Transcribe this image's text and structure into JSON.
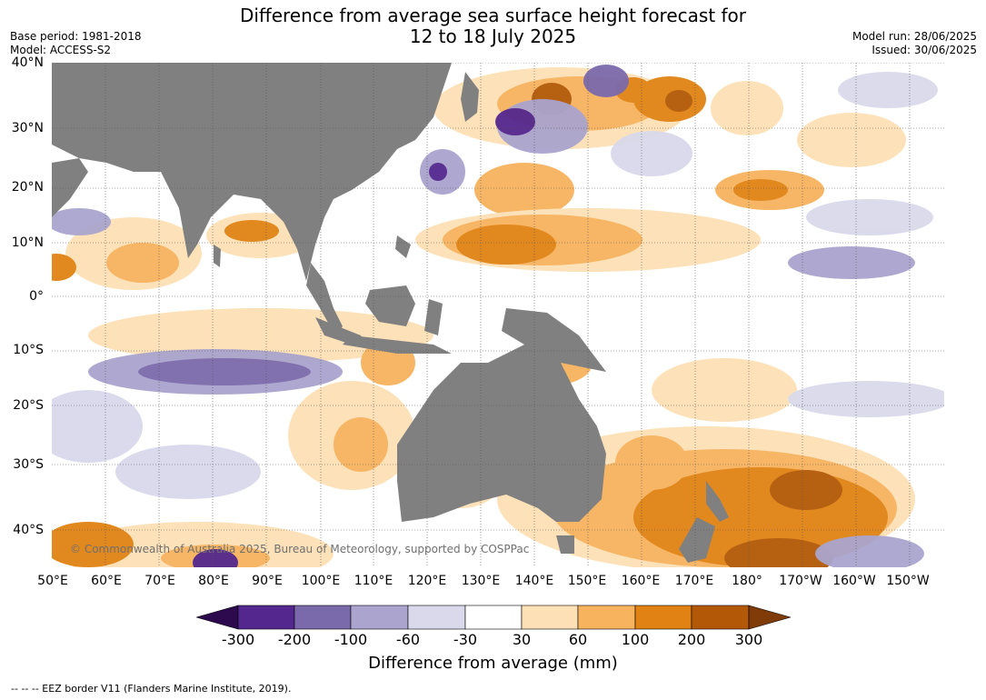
{
  "title": {
    "line1": "Difference from average sea surface height forecast for",
    "line2": "12 to 18 July 2025"
  },
  "meta_left": {
    "base_period": "Base period: 1981-2018",
    "model": "Model: ACCESS-S2"
  },
  "meta_right": {
    "model_run": "Model run: 28/06/2025",
    "issued": "Issued: 30/06/2025"
  },
  "map": {
    "lat_labels": [
      "40°N",
      "30°N",
      "20°N",
      "10°N",
      "0°",
      "10°S",
      "20°S",
      "30°S",
      "40°S"
    ],
    "lon_labels": [
      "50°E",
      "60°E",
      "70°E",
      "80°E",
      "90°E",
      "100°E",
      "110°E",
      "120°E",
      "130°E",
      "140°E",
      "150°E",
      "160°E",
      "170°E",
      "180°",
      "170°W",
      "160°W",
      "150°W"
    ],
    "copyright": "© Commonwealth of Australia 2025, Bureau of Meteorology, supported by COSPPac",
    "land_color": "#808080",
    "grid_color": "#555555"
  },
  "colorbar": {
    "ticks": [
      "-300",
      "-200",
      "-100",
      "-60",
      "-30",
      "30",
      "60",
      "100",
      "200",
      "300"
    ],
    "colors": [
      "#2d0a4e",
      "#54278f",
      "#7b6aab",
      "#aaa4ce",
      "#d9d9eb",
      "#ffffff",
      "#fde0b5",
      "#f7b35e",
      "#e08214",
      "#b35806",
      "#7f3b08"
    ],
    "title": "Difference from average (mm)"
  },
  "footer": "--  --  -- EEZ border V11 (Flanders Marine Institute, 2019)."
}
